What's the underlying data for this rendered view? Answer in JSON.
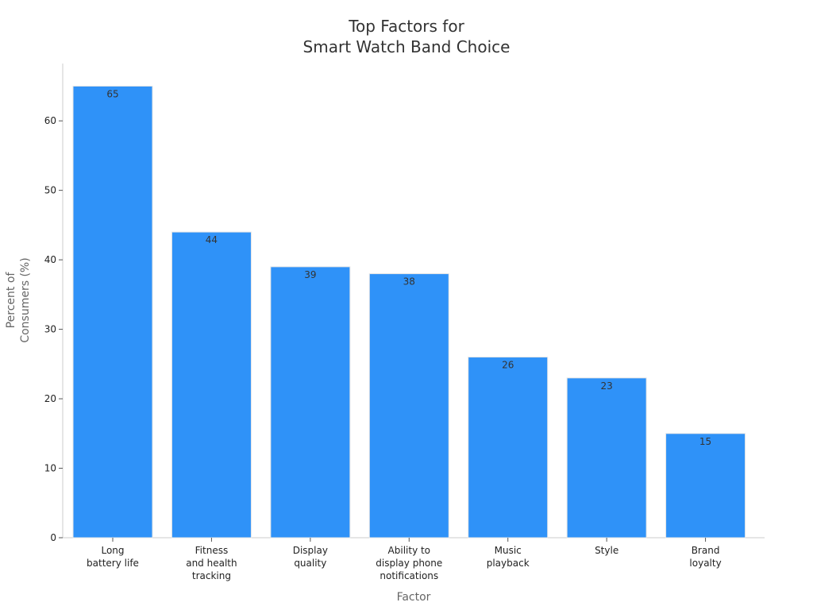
{
  "chart_data": {
    "type": "bar",
    "title": [
      "Top Factors for",
      "Smart Watch Band Choice"
    ],
    "xlabel": "Factor",
    "ylabel": [
      "Percent of",
      "Consumers (%)"
    ],
    "categories": [
      [
        "Long",
        "battery life"
      ],
      [
        "Fitness",
        "and health",
        "tracking"
      ],
      [
        "Display",
        "quality"
      ],
      [
        "Ability to",
        "display phone",
        "notifications"
      ],
      [
        "Music",
        "playback"
      ],
      [
        "Style"
      ],
      [
        "Brand",
        "loyalty"
      ]
    ],
    "values": [
      65,
      44,
      39,
      38,
      26,
      23,
      15
    ],
    "data_labels": [
      "65",
      "44",
      "39",
      "38",
      "26",
      "23",
      "15"
    ],
    "ylim": [
      0,
      68.25
    ],
    "yticks": [
      0,
      10,
      20,
      30,
      40,
      50,
      60
    ],
    "bar_color": "#2f92f8",
    "grid": false,
    "legend": "none"
  }
}
